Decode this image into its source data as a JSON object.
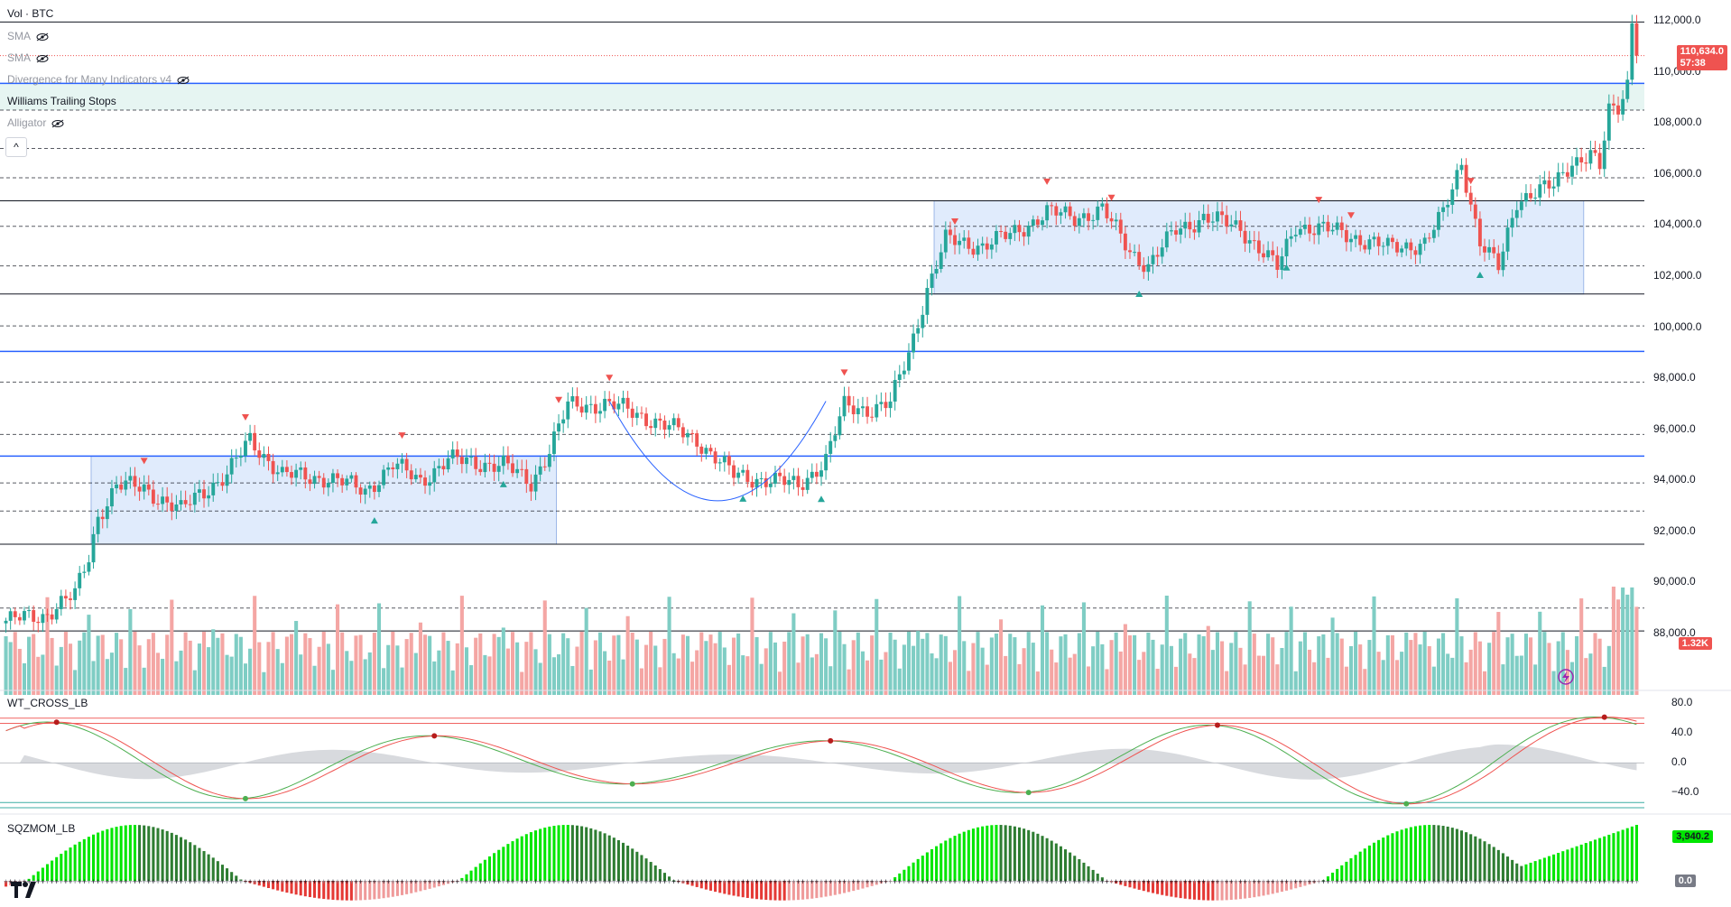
{
  "legend": {
    "symbol": "Vol · BTC",
    "items": [
      {
        "label": "SMA",
        "hidden": true
      },
      {
        "label": "SMA",
        "hidden": true
      },
      {
        "label": "Divergence for Many Indicators v4",
        "hidden": true
      },
      {
        "label": "Williams Trailing Stops",
        "hidden": false
      },
      {
        "label": "Alligator",
        "hidden": true
      }
    ]
  },
  "price_axis": {
    "ticks": [
      "112,000.0",
      "110,000.0",
      "108,000.0",
      "106,000.0",
      "104,000.0",
      "102,000.0",
      "100,000.0",
      "98,000.0",
      "96,000.0",
      "94,000.0",
      "92,000.0",
      "90,000.0",
      "88,000.0"
    ],
    "current_price": "110,634.0",
    "countdown": "57:38",
    "volume_badge": "1.32K"
  },
  "wt_panel": {
    "title": "WT_CROSS_LB",
    "ticks": [
      "80.0",
      "40.0",
      "0.0",
      "−40.0"
    ]
  },
  "sqz_panel": {
    "title": "SQZMOM_LB",
    "value": "3,940.2",
    "zero": "0.0"
  },
  "colors": {
    "up": "#26a69a",
    "down": "#ef5350",
    "rect": "#d6e4fb",
    "blue": "#2962ff"
  },
  "chart_data": {
    "type": "candlestick",
    "title": "BTC",
    "ylim": [
      86500,
      112500
    ],
    "y_ticks": [
      88000,
      90000,
      92000,
      94000,
      96000,
      98000,
      100000,
      102000,
      104000,
      106000,
      108000,
      110000,
      112000
    ],
    "horizontal_levels": {
      "solid_black": [
        111950,
        104950,
        101300,
        91500,
        88100
      ],
      "solid_blue": [
        109550,
        99050,
        94950
      ],
      "dashed": [
        108500,
        107000,
        105850,
        103950,
        102400,
        100050,
        97850,
        95800,
        93900,
        92800,
        89000
      ]
    },
    "consolidation_zones": [
      {
        "from_index": 19,
        "to_index": 119,
        "low": 91500,
        "high": 94950
      },
      {
        "from_index": 202,
        "to_index": 342,
        "low": 101300,
        "high": 104950
      },
      {
        "from_index": 0,
        "to_index": 389,
        "low": 108500,
        "high": 109550
      }
    ],
    "candles_count": 355,
    "anchors": [
      [
        0,
        88500
      ],
      [
        8,
        88700
      ],
      [
        12,
        89200
      ],
      [
        15,
        89500
      ],
      [
        18,
        91000
      ],
      [
        20,
        92600
      ],
      [
        24,
        93800
      ],
      [
        30,
        93700
      ],
      [
        38,
        92800
      ],
      [
        42,
        93500
      ],
      [
        48,
        94200
      ],
      [
        53,
        95600
      ],
      [
        60,
        94200
      ],
      [
        70,
        94100
      ],
      [
        78,
        93600
      ],
      [
        84,
        94600
      ],
      [
        90,
        94000
      ],
      [
        96,
        94800
      ],
      [
        102,
        94700
      ],
      [
        108,
        94600
      ],
      [
        114,
        93900
      ],
      [
        118,
        95200
      ],
      [
        122,
        96900
      ],
      [
        130,
        97000
      ],
      [
        134,
        96800
      ],
      [
        140,
        96400
      ],
      [
        150,
        95600
      ],
      [
        158,
        94200
      ],
      [
        166,
        94000
      ],
      [
        172,
        93800
      ],
      [
        178,
        94800
      ],
      [
        182,
        96900
      ],
      [
        188,
        96800
      ],
      [
        192,
        97000
      ],
      [
        196,
        99000
      ],
      [
        200,
        101500
      ],
      [
        204,
        103400
      ],
      [
        212,
        103200
      ],
      [
        218,
        103600
      ],
      [
        226,
        104500
      ],
      [
        232,
        104300
      ],
      [
        238,
        104600
      ],
      [
        244,
        103000
      ],
      [
        248,
        102400
      ],
      [
        254,
        103800
      ],
      [
        260,
        104300
      ],
      [
        268,
        103900
      ],
      [
        276,
        102300
      ],
      [
        280,
        104000
      ],
      [
        290,
        103700
      ],
      [
        300,
        103100
      ],
      [
        308,
        103300
      ],
      [
        312,
        104400
      ],
      [
        316,
        106500
      ],
      [
        320,
        103300
      ],
      [
        324,
        102300
      ],
      [
        328,
        105000
      ],
      [
        332,
        105300
      ],
      [
        336,
        105500
      ],
      [
        340,
        106500
      ],
      [
        344,
        106800
      ],
      [
        346,
        106200
      ],
      [
        348,
        108400
      ],
      [
        350,
        108600
      ],
      [
        352,
        109600
      ],
      [
        353,
        111900
      ],
      [
        354,
        110634
      ]
    ],
    "swing_high_markers": [
      30,
      52,
      86,
      120,
      131,
      182,
      206,
      226,
      240,
      285,
      292,
      318
    ],
    "swing_low_markers": [
      80,
      108,
      160,
      177,
      246,
      278,
      320
    ],
    "volume_badge_value": "1.32K",
    "wt_cross": {
      "ylim": [
        -60,
        85
      ],
      "levels": [
        60,
        53,
        0,
        -53,
        -60
      ]
    },
    "sqzmom": {
      "value": 3940.2
    }
  }
}
